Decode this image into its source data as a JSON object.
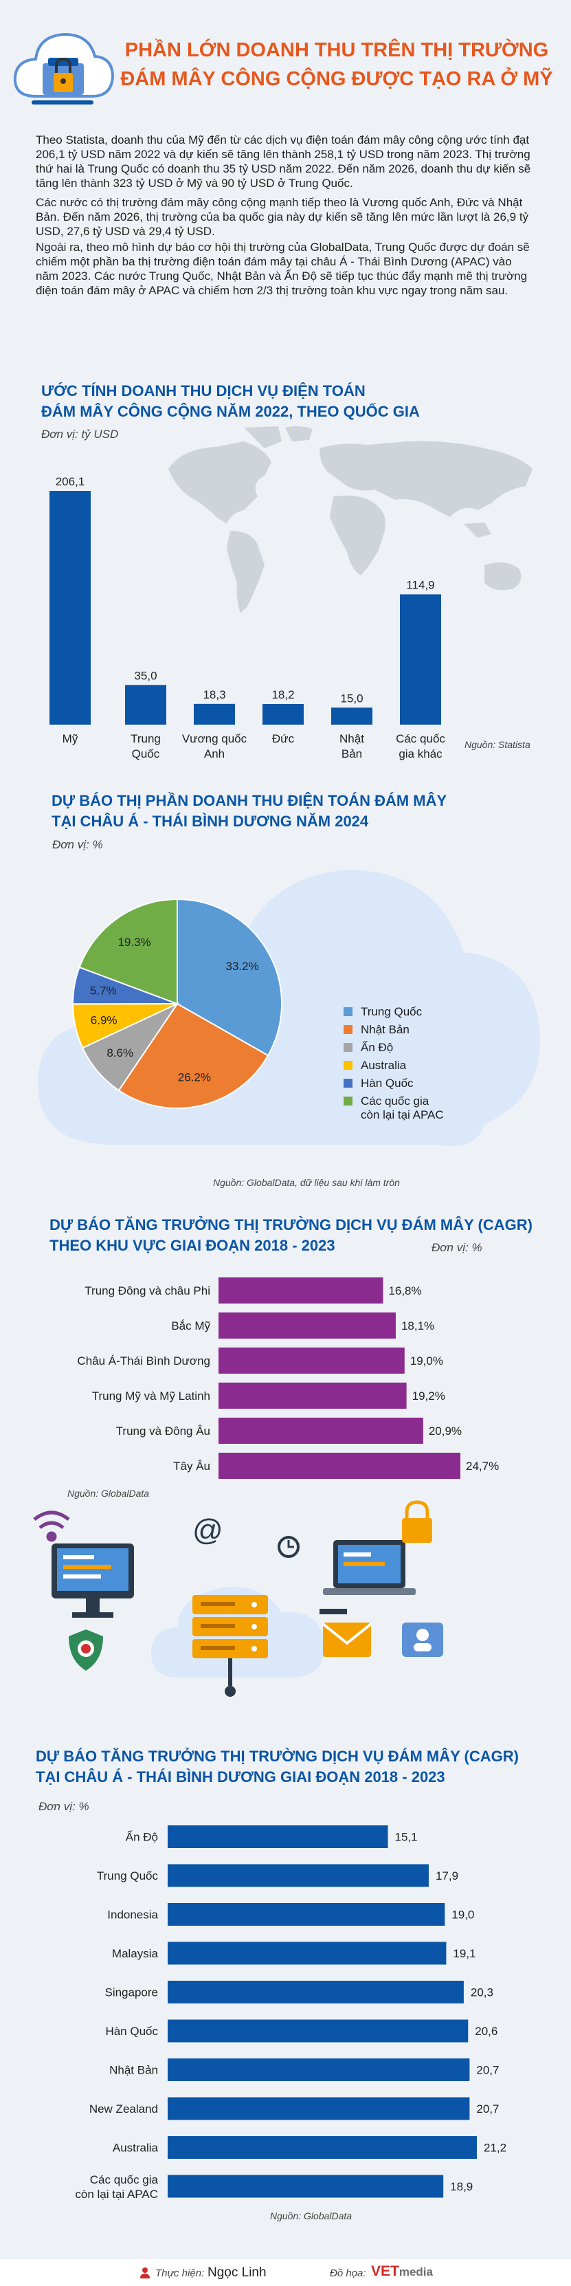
{
  "header": {
    "title_line1": "PHẦN LỚN DOANH THU TRÊN THỊ TRƯỜNG",
    "title_line2": "ĐÁM MÂY CÔNG CỘNG ĐƯỢC TẠO RA Ở MỸ"
  },
  "intro": {
    "p1": "Theo Statista, doanh thu của Mỹ đến từ các dịch vụ điện toán đám mây công cộng ước tính đạt 206,1 tỷ USD năm 2022 và dự kiến sẽ tăng lên thành 258,1 tỷ USD trong năm 2023. Thị trường thứ hai là Trung Quốc có doanh thu 35 tỷ USD năm 2022. Đến năm 2026, doanh thu dự kiến sẽ tăng lên thành 323 tỷ USD ở Mỹ và 90 tỷ USD ở Trung Quốc.",
    "p2": "Các nước có thị trường đám mây công cộng mạnh tiếp theo là Vương quốc Anh, Đức và Nhật Bản. Đến năm 2026, thị trường của ba quốc gia này dự kiến sẽ tăng lên mức lần lượt là 26,9 tỷ USD, 27,6 tỷ USD và 29,4 tỷ USD.",
    "p3": "Ngoài ra, theo mô hình dự báo cơ hội thị trường của GlobalData, Trung Quốc được dự đoán sẽ chiếm một phần ba thị trường điện toán đám mây tại châu Á - Thái Bình Dương (APAC) vào năm 2023. Các nước Trung Quốc, Nhật Bản và Ấn Độ sẽ tiếp tục thúc đẩy mạnh mẽ thị trường điện toán đám mây ở APAC và chiếm hơn 2/3 thị trường toàn khu vực ngay trong năm sau."
  },
  "chart_data": [
    {
      "type": "bar",
      "title_line1": "ƯỚC TÍNH DOANH THU DỊCH VỤ ĐIỆN TOÁN",
      "title_line2": "ĐÁM MÂY CÔNG CỘNG NĂM 2022, THEO QUỐC GIA",
      "unit": "Đơn vị: tỷ USD",
      "source": "Nguồn: Statista",
      "categories": [
        "Mỹ",
        "Trung Quốc",
        "Vương quốc Anh",
        "Đức",
        "Nhật Bản",
        "Các quốc gia khác"
      ],
      "category_lines": [
        [
          "Mỹ"
        ],
        [
          "Trung",
          "Quốc"
        ],
        [
          "Vương quốc",
          "Anh"
        ],
        [
          "Đức"
        ],
        [
          "Nhật",
          "Bản"
        ],
        [
          "Các quốc",
          "gia khác"
        ]
      ],
      "values": [
        206.1,
        35.0,
        18.3,
        18.2,
        15.0,
        114.9
      ],
      "value_labels": [
        "206,1",
        "35,0",
        "18,3",
        "18,2",
        "15,0",
        "114,9"
      ],
      "color": "#0a55a7"
    },
    {
      "type": "pie",
      "title_line1": "DỰ BÁO THỊ PHẦN DOANH THU ĐIỆN TOÁN ĐÁM MÂY",
      "title_line2": "TẠI CHÂU Á - THÁI BÌNH DƯƠNG NĂM 2024",
      "unit": "Đơn vị: %",
      "source": "Nguồn: GlobalData, dữ liệu sau khi làm tròn",
      "categories": [
        "Trung Quốc",
        "Nhật Bản",
        "Ấn Độ",
        "Australia",
        "Hàn Quốc",
        "Các quốc gia còn lại tại APAC"
      ],
      "legend_lines": [
        [
          "Trung Quốc"
        ],
        [
          "Nhật Bản"
        ],
        [
          "Ấn Độ"
        ],
        [
          "Australia"
        ],
        [
          "Hàn Quốc"
        ],
        [
          "Các quốc gia",
          "còn lại tại APAC"
        ]
      ],
      "values": [
        33.2,
        26.2,
        8.6,
        6.9,
        5.7,
        19.3
      ],
      "value_labels": [
        "33.2%",
        "26.2%",
        "8.6%",
        "6.9%",
        "5.7%",
        "19.3%"
      ],
      "colors": [
        "#5b9bd5",
        "#ed7d31",
        "#a5a5a5",
        "#ffc000",
        "#4472c4",
        "#70ad47"
      ]
    },
    {
      "type": "bar",
      "orientation": "horizontal",
      "title_line1": "DỰ BÁO TĂNG TRƯỞNG THỊ TRƯỜNG DỊCH VỤ ĐÁM MÂY (CAGR)",
      "title_line2": "THEO KHU VỰC GIAI ĐOẠN 2018 - 2023",
      "unit": "Đơn vị: %",
      "source": "Nguồn: GlobalData",
      "categories": [
        "Trung Đông và châu Phi",
        "Bắc Mỹ",
        "Châu Á-Thái Bình Dương",
        "Trung Mỹ và Mỹ Latinh",
        "Trung và Đông Âu",
        "Tây Âu"
      ],
      "values": [
        16.8,
        18.1,
        19.0,
        19.2,
        20.9,
        24.7
      ],
      "value_labels": [
        "16,8%",
        "18,1%",
        "19,0%",
        "19,2%",
        "20,9%",
        "24,7%"
      ],
      "color": "#8b2a8f"
    },
    {
      "type": "bar",
      "orientation": "horizontal",
      "title_line1": "DỰ BÁO TĂNG TRƯỞNG THỊ TRƯỜNG DỊCH VỤ ĐÁM MÂY (CAGR)",
      "title_line2": "TẠI CHÂU Á - THÁI BÌNH DƯƠNG GIAI ĐOẠN 2018 - 2023",
      "unit": "Đơn vị: %",
      "source": "Nguồn: GlobalData",
      "categories": [
        "Ấn Độ",
        "Trung Quốc",
        "Indonesia",
        "Malaysia",
        "Singapore",
        "Hàn Quốc",
        "Nhật Bản",
        "New Zealand",
        "Australia",
        "Các quốc gia còn lại tại APAC"
      ],
      "category_lines": [
        [
          "Ấn Độ"
        ],
        [
          "Trung Quốc"
        ],
        [
          "Indonesia"
        ],
        [
          "Malaysia"
        ],
        [
          "Singapore"
        ],
        [
          "Hàn Quốc"
        ],
        [
          "Nhật Bản"
        ],
        [
          "New Zealand"
        ],
        [
          "Australia"
        ],
        [
          "Các quốc gia",
          "còn lại tại APAC"
        ]
      ],
      "values": [
        15.1,
        17.9,
        19.0,
        19.1,
        20.3,
        20.6,
        20.7,
        20.7,
        21.2,
        18.9
      ],
      "value_labels": [
        "15,1",
        "17,9",
        "19,0",
        "19,1",
        "20,3",
        "20,6",
        "20,7",
        "20,7",
        "21,2",
        "18,9"
      ],
      "color": "#0a55a7"
    }
  ],
  "footer": {
    "author_prefix": "Thực hiện:",
    "author": "Ngọc Linh",
    "designer_prefix": "Đồ họa:",
    "brand_vet": "VET",
    "brand_media": "media"
  },
  "icons": [
    "cloud-lock-icon",
    "world-map-icon",
    "cloud-shape-icon",
    "wifi-icon",
    "monitor-icon",
    "server-icon",
    "padlock-icon",
    "shield-bug-icon",
    "envelope-icon",
    "at-sign-icon",
    "laptop-icon",
    "clock-icon",
    "person-icon"
  ]
}
